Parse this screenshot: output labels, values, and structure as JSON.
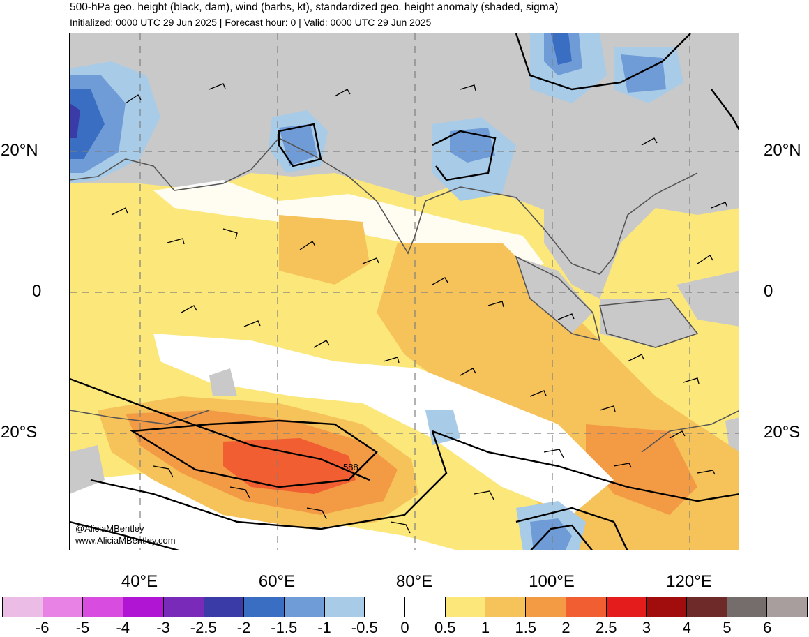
{
  "title": "500-hPa geo. height (black, dam), wind (barbs, kt), standardized geo. height anomaly (shaded, sigma)",
  "subtitle": "Initialized: 0000 UTC 29 Jun 2025 | Forecast hour: 0 | Valid: 0000 UTC 29 Jun 2025",
  "lat_labels": [
    "20°N",
    "0",
    "20°S"
  ],
  "lon_labels": [
    "40°E",
    "60°E",
    "80°E",
    "100°E",
    "120°E"
  ],
  "contour_label": "588",
  "watermark": {
    "handle": "@AliciaMBentley",
    "url": "www.AliciaMBentley.com"
  },
  "colorbar": {
    "labels": [
      "-6",
      "-5",
      "-4",
      "-3",
      "-2.5",
      "-2",
      "-1.5",
      "-1",
      "-0.5",
      "0",
      "0.5",
      "1",
      "1.5",
      "2",
      "2.5",
      "3",
      "4",
      "5",
      "6"
    ],
    "colors": [
      "#ebbde6",
      "#e882e4",
      "#d84de0",
      "#b015d4",
      "#7a2ab8",
      "#3b3ba8",
      "#3a6ec2",
      "#6f9bd6",
      "#a8cbe8",
      "#ffffff",
      "#ffffff",
      "#fbe77a",
      "#f6c25a",
      "#f39a45",
      "#f15e32",
      "#e41c1c",
      "#a10d0d",
      "#6e2a28",
      "#756c6c",
      "#a89e9e"
    ]
  }
}
